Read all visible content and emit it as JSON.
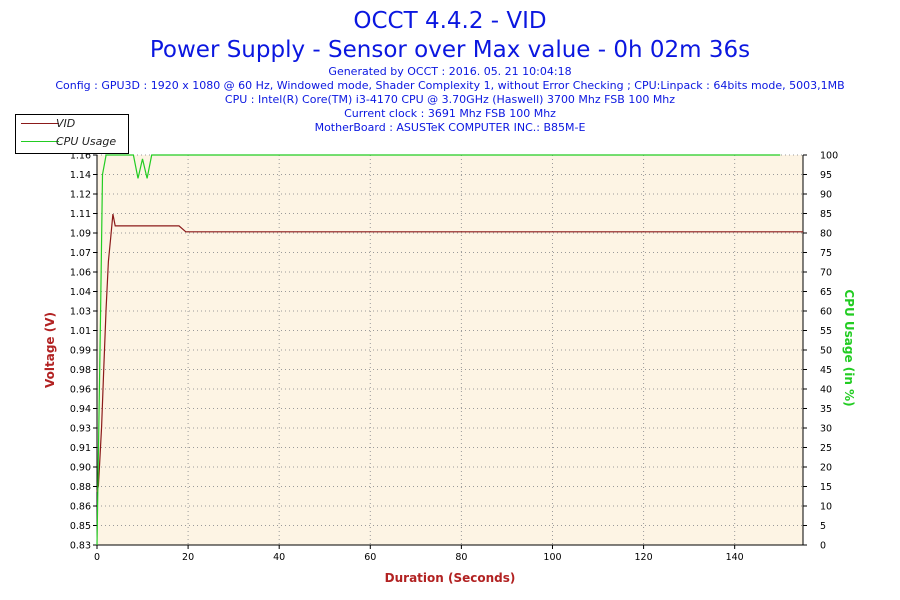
{
  "header": {
    "title": "OCCT 4.4.2 - VID",
    "subtitle": "Power Supply - Sensor over Max value - 0h 02m 36s",
    "meta": [
      "Generated by OCCT : 2016. 05. 21 10:04:18",
      "Config : GPU3D : 1920 x 1080 @ 60 Hz, Windowed mode, Shader Complexity 1, without Error Checking ; CPU:Linpack : 64bits mode, 5003,1MB",
      "CPU : Intel(R) Core(TM) i3-4170 CPU @ 3.70GHz (Haswell) 3700 Mhz FSB 100 Mhz",
      "Current clock : 3691 Mhz FSB 100 Mhz",
      "MotherBoard : ASUSTeK COMPUTER INC.: B85M-E"
    ]
  },
  "colors": {
    "title": "#0b17e0",
    "plot_background": "#fdf4e4",
    "vid_line": "#8b1a1a",
    "cpu_line": "#22cc22",
    "axis_title_left": "#b22222",
    "axis_title_right": "#22cc22"
  },
  "chart_data": {
    "type": "line",
    "xlabel": "Duration (Seconds)",
    "ylabel": "Voltage (V)",
    "y2label": "CPU Usage (in %)",
    "xlim": [
      0,
      155
    ],
    "ylim": [
      0.83,
      1.16
    ],
    "y2lim": [
      0,
      100
    ],
    "x_ticks": [
      0,
      20,
      40,
      60,
      80,
      100,
      120,
      140
    ],
    "y_ticks": [
      "0.83",
      "0.85",
      "0.86",
      "0.88",
      "0.90",
      "0.91",
      "0.93",
      "0.94",
      "0.96",
      "0.98",
      "0.99",
      "1.01",
      "1.03",
      "1.04",
      "1.06",
      "1.07",
      "1.09",
      "1.11",
      "1.12",
      "1.14",
      "1.16"
    ],
    "y2_ticks": [
      0,
      5,
      10,
      15,
      20,
      25,
      30,
      35,
      40,
      45,
      50,
      55,
      60,
      65,
      70,
      75,
      80,
      85,
      90,
      95,
      100
    ],
    "grid": true,
    "legend": "top-left",
    "series": [
      {
        "name": "VID",
        "axis": "left",
        "x": [
          0,
          0.3,
          0.6,
          1.0,
          1.5,
          2.0,
          2.5,
          3.0,
          3.5,
          4,
          18,
          19.5,
          155
        ],
        "y": [
          0.875,
          0.88,
          0.9,
          0.93,
          0.98,
          1.03,
          1.07,
          1.09,
          1.11,
          1.1,
          1.1,
          1.095,
          1.095
        ]
      },
      {
        "name": "CPU Usage",
        "axis": "right",
        "x": [
          0,
          0.8,
          1.2,
          2,
          8,
          9,
          10,
          11,
          12,
          150
        ],
        "y": [
          0,
          60,
          95,
          100,
          100,
          94,
          99,
          94,
          100,
          100
        ]
      }
    ]
  }
}
